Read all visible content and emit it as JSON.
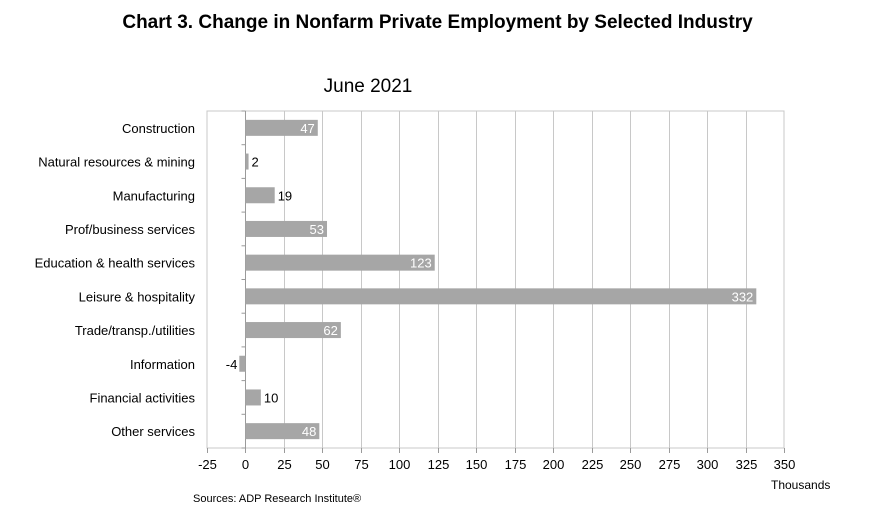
{
  "title": "Chart 3. Change  in Nonfarm  Private  Employment  by Selected Industry",
  "subtitle": "June 2021",
  "source": "Sources: ADP Research Institute®",
  "units_label": "Thousands",
  "colors": {
    "bar": "#a6a6a6",
    "grid": "#c8c8c8",
    "axis": "#9a9a9a",
    "label_inside": "#ffffff",
    "label_outside": "#000000"
  },
  "chart_data": {
    "type": "bar",
    "orientation": "horizontal",
    "title": "Chart 3. Change  in Nonfarm  Private  Employment  by Selected Industry",
    "subtitle": "June 2021",
    "categories": [
      "Construction",
      "Natural resources & mining",
      "Manufacturing",
      "Prof/business services",
      "Education & health services",
      "Leisure & hospitality",
      "Trade/transp./utilities",
      "Information",
      "Financial activities",
      "Other services"
    ],
    "values": [
      47,
      2,
      19,
      53,
      123,
      332,
      62,
      -4,
      10,
      48
    ],
    "xlim": [
      -25,
      350
    ],
    "xticks": [
      -25,
      0,
      25,
      50,
      75,
      100,
      125,
      150,
      175,
      200,
      225,
      250,
      275,
      300,
      325,
      350
    ],
    "xlabel": "Thousands",
    "ylabel": "",
    "grid": "vertical",
    "legend": "none"
  }
}
